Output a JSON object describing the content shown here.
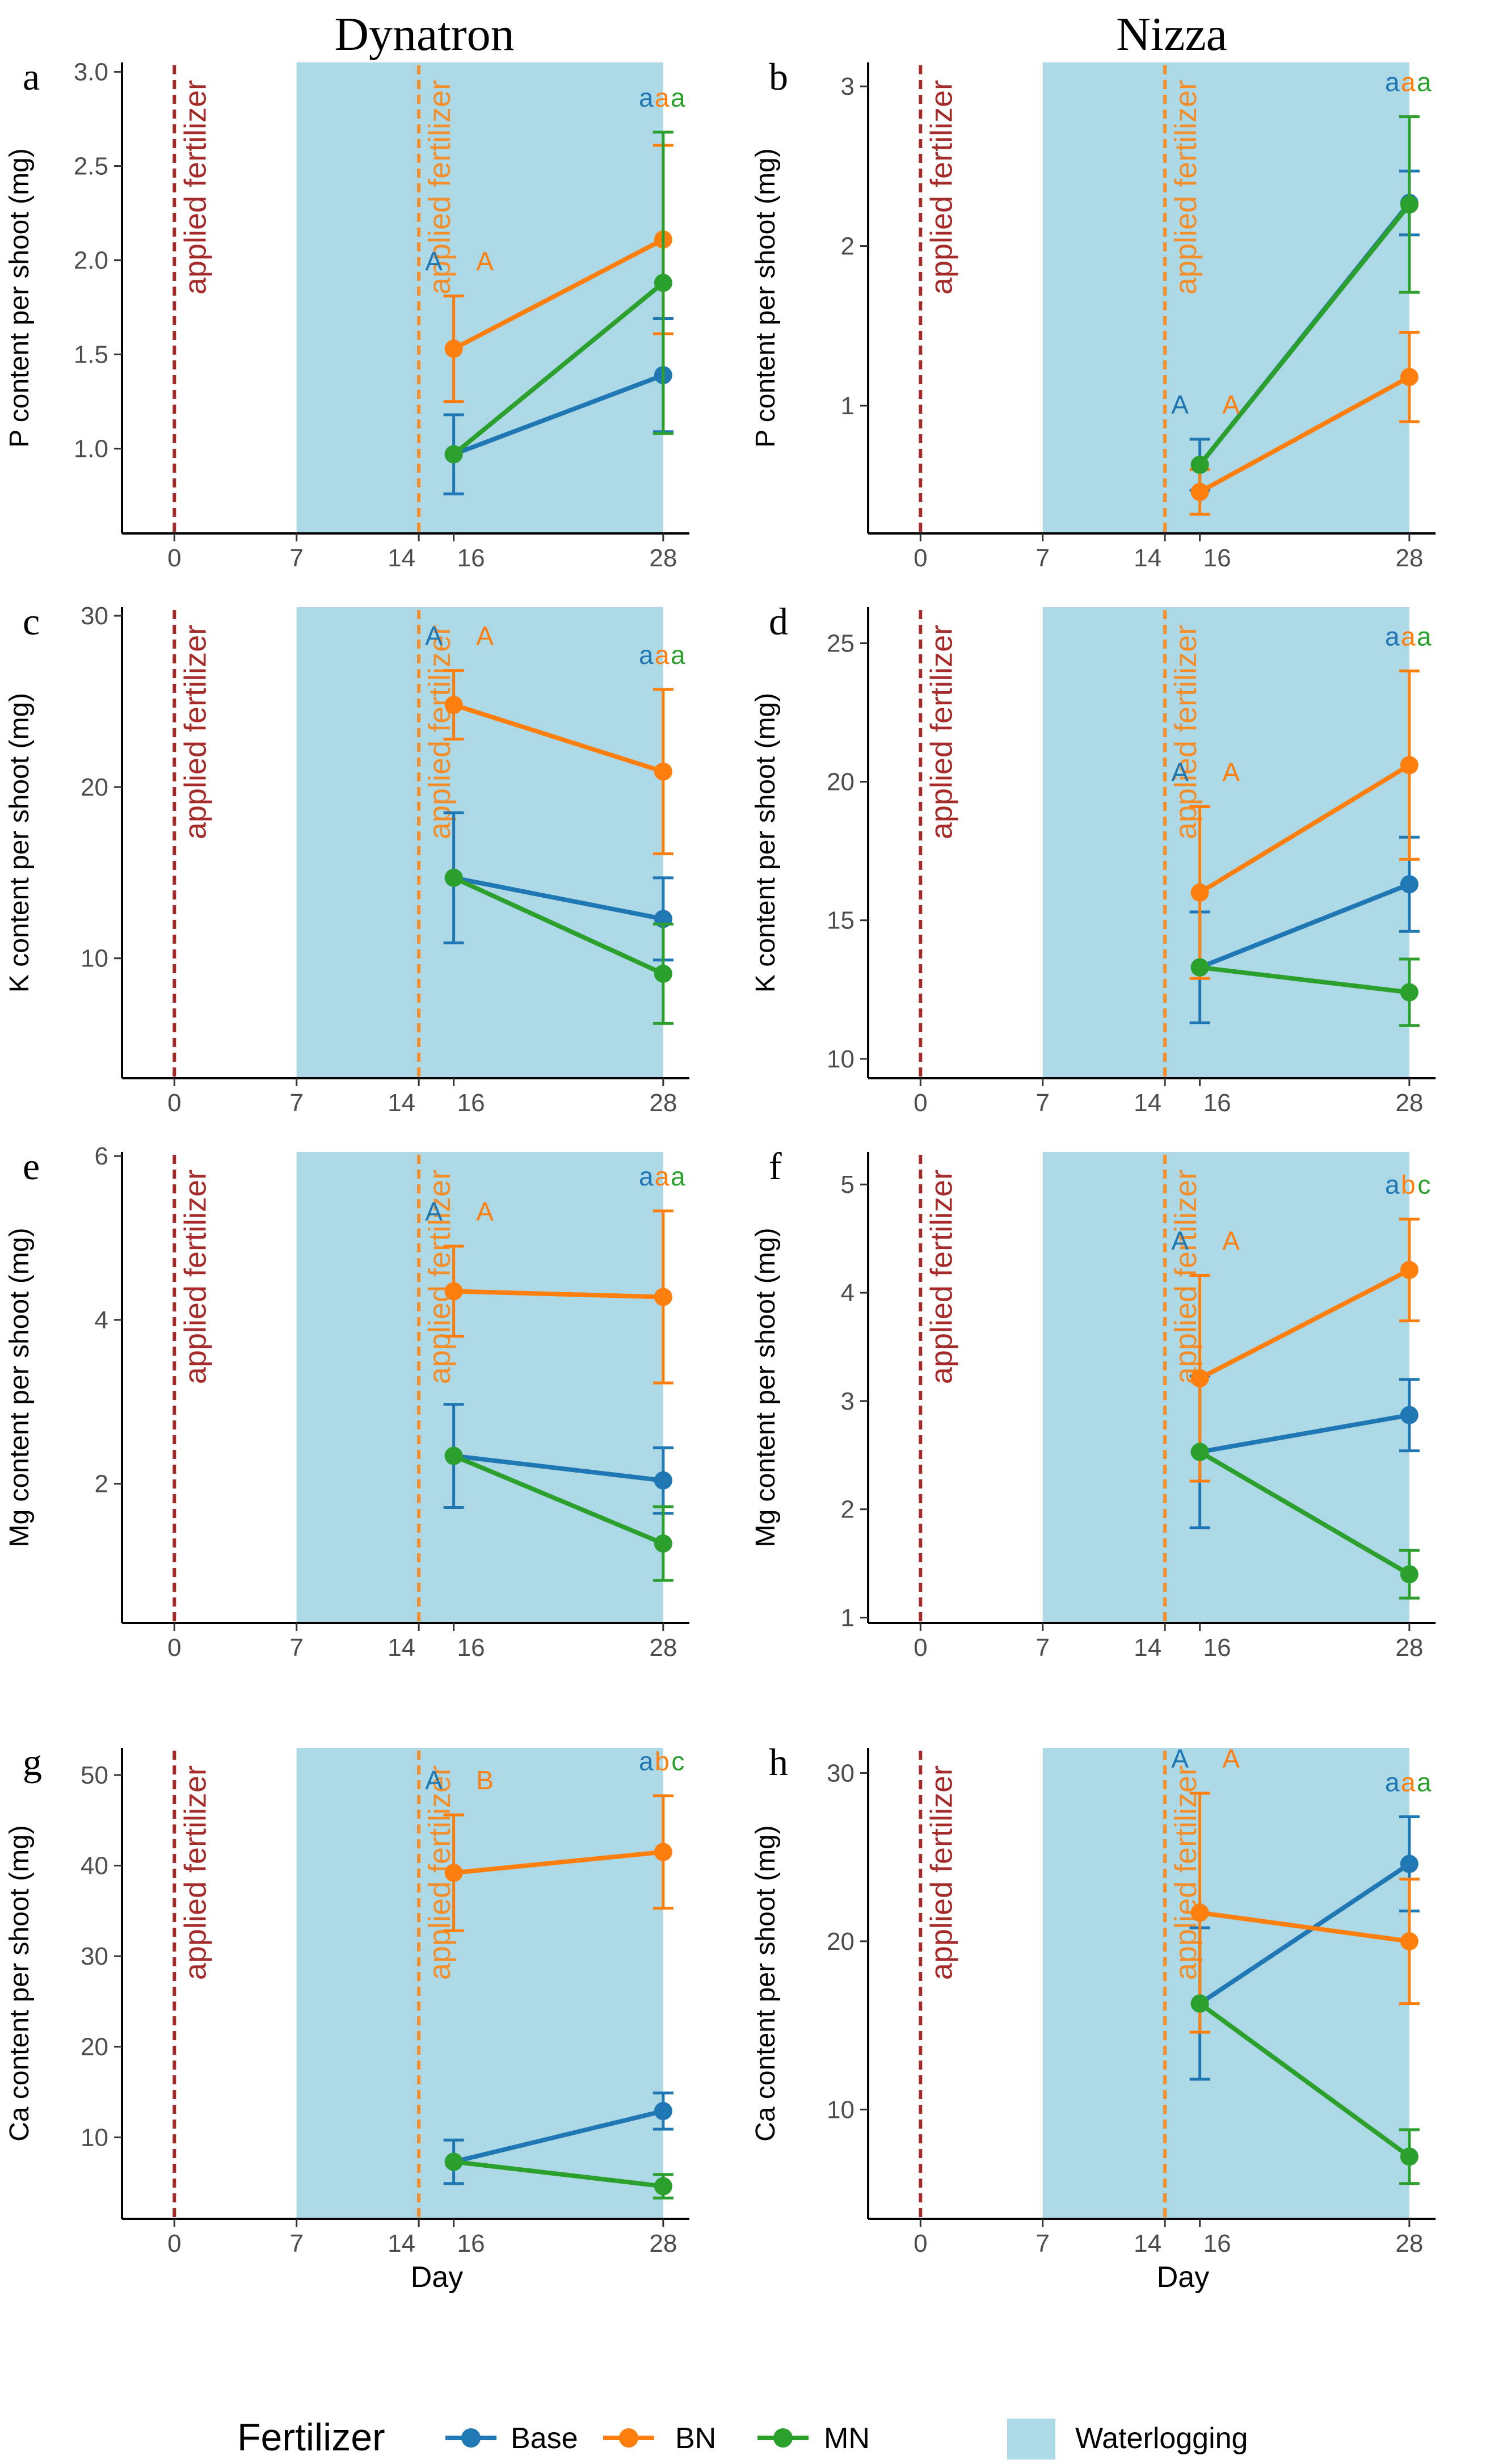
{
  "columns": [
    "Dynatron",
    "Nizza"
  ],
  "x_axis_label": "Day",
  "fertilizer_line_label": "applied fertilizer",
  "colors": {
    "Base": "#1f77b4",
    "BN": "#ff7f0e",
    "MN": "#2ca02c",
    "waterlogging": "#add8e6",
    "first_fertilizer": "#a52a2a",
    "second_fertilizer": "#f28e2b"
  },
  "legend": {
    "title": "Fertilizer",
    "items": [
      {
        "name": "Base",
        "color": "#1f77b4"
      },
      {
        "name": "BN",
        "color": "#ff7f0e"
      },
      {
        "name": "MN",
        "color": "#2ca02c"
      }
    ],
    "waterlogging_label": "Waterlogging"
  },
  "chart_data": [
    {
      "panel": "a",
      "cultivar": "Dynatron",
      "type": "line",
      "ylabel": "P content per shoot (mg)",
      "x_ticks": [
        0,
        7,
        14,
        16,
        28
      ],
      "y_ticks": [
        1.0,
        1.5,
        2.0,
        2.5,
        3.0
      ],
      "y_tick_labels": [
        "1.0",
        "1.5",
        "2.0",
        "2.5",
        "3.0"
      ],
      "ylim": [
        0.55,
        3.05
      ],
      "waterlogging": [
        7,
        28
      ],
      "fertilizer_days": [
        0,
        14
      ],
      "series": [
        {
          "name": "Base",
          "x": [
            16,
            28
          ],
          "y": [
            0.97,
            1.39
          ],
          "err": [
            0.21,
            0.3
          ]
        },
        {
          "name": "BN",
          "x": [
            16,
            28
          ],
          "y": [
            1.53,
            2.11
          ],
          "err": [
            0.28,
            0.5
          ]
        },
        {
          "name": "MN",
          "x": [
            16,
            28
          ],
          "y": [
            0.97,
            1.88
          ],
          "err": [
            0.0,
            0.8
          ]
        }
      ],
      "day16_letters": [
        "A",
        "A"
      ],
      "day28_letters": [
        "a",
        "a",
        "a"
      ]
    },
    {
      "panel": "b",
      "cultivar": "Nizza",
      "type": "line",
      "ylabel": "P content per shoot (mg)",
      "x_ticks": [
        0,
        7,
        14,
        16,
        28
      ],
      "y_ticks": [
        1,
        2,
        3
      ],
      "y_tick_labels": [
        "1",
        "2",
        "3"
      ],
      "ylim": [
        0.2,
        3.15
      ],
      "waterlogging": [
        7,
        28
      ],
      "fertilizer_days": [
        0,
        14
      ],
      "series": [
        {
          "name": "Base",
          "x": [
            16,
            28
          ],
          "y": [
            0.63,
            2.27
          ],
          "err": [
            0.16,
            0.2
          ]
        },
        {
          "name": "BN",
          "x": [
            16,
            28
          ],
          "y": [
            0.46,
            1.18
          ],
          "err": [
            0.14,
            0.28
          ]
        },
        {
          "name": "MN",
          "x": [
            16,
            28
          ],
          "y": [
            0.63,
            2.26
          ],
          "err": [
            0.0,
            0.55
          ]
        }
      ],
      "day16_letters": [
        "A",
        "A"
      ],
      "day28_letters": [
        "a",
        "a",
        "a"
      ]
    },
    {
      "panel": "c",
      "cultivar": "Dynatron",
      "type": "line",
      "ylabel": "K content per shoot (mg)",
      "x_ticks": [
        0,
        7,
        14,
        16,
        28
      ],
      "y_ticks": [
        10,
        20,
        30
      ],
      "y_tick_labels": [
        "10",
        "20",
        "30"
      ],
      "ylim": [
        3.0,
        30.5
      ],
      "waterlogging": [
        7,
        28
      ],
      "fertilizer_days": [
        0,
        14
      ],
      "series": [
        {
          "name": "Base",
          "x": [
            16,
            28
          ],
          "y": [
            14.7,
            12.3
          ],
          "err": [
            3.8,
            2.4
          ]
        },
        {
          "name": "BN",
          "x": [
            16,
            28
          ],
          "y": [
            24.8,
            20.9
          ],
          "err": [
            2.0,
            4.8
          ]
        },
        {
          "name": "MN",
          "x": [
            16,
            28
          ],
          "y": [
            14.7,
            9.1
          ],
          "err": [
            0.0,
            2.9
          ]
        }
      ],
      "day16_letters": [
        "A",
        "A"
      ],
      "day28_letters": [
        "a",
        "a",
        "a"
      ]
    },
    {
      "panel": "d",
      "cultivar": "Nizza",
      "type": "line",
      "ylabel": "K content per shoot (mg)",
      "x_ticks": [
        0,
        7,
        14,
        16,
        28
      ],
      "y_ticks": [
        10,
        15,
        20,
        25
      ],
      "y_tick_labels": [
        "10",
        "15",
        "20",
        "25"
      ],
      "ylim": [
        9.3,
        26.3
      ],
      "waterlogging": [
        7,
        28
      ],
      "fertilizer_days": [
        0,
        14
      ],
      "series": [
        {
          "name": "Base",
          "x": [
            16,
            28
          ],
          "y": [
            13.3,
            16.3
          ],
          "err": [
            2.0,
            1.7
          ]
        },
        {
          "name": "BN",
          "x": [
            16,
            28
          ],
          "y": [
            16.0,
            20.6
          ],
          "err": [
            3.1,
            3.4
          ]
        },
        {
          "name": "MN",
          "x": [
            16,
            28
          ],
          "y": [
            13.3,
            12.4
          ],
          "err": [
            0.0,
            1.2
          ]
        }
      ],
      "day16_letters": [
        "A",
        "A"
      ],
      "day28_letters": [
        "a",
        "a",
        "a"
      ]
    },
    {
      "panel": "e",
      "cultivar": "Dynatron",
      "type": "line",
      "ylabel": "Mg content per shoot (mg)",
      "x_ticks": [
        0,
        7,
        14,
        16,
        28
      ],
      "y_ticks": [
        2,
        4,
        6
      ],
      "y_tick_labels": [
        "2",
        "4",
        "6"
      ],
      "ylim": [
        0.3,
        6.05
      ],
      "waterlogging": [
        7,
        28
      ],
      "fertilizer_days": [
        0,
        14
      ],
      "series": [
        {
          "name": "Base",
          "x": [
            16,
            28
          ],
          "y": [
            2.34,
            2.04
          ],
          "err": [
            0.63,
            0.4
          ]
        },
        {
          "name": "BN",
          "x": [
            16,
            28
          ],
          "y": [
            4.35,
            4.28
          ],
          "err": [
            0.55,
            1.05
          ]
        },
        {
          "name": "MN",
          "x": [
            16,
            28
          ],
          "y": [
            2.34,
            1.27
          ],
          "err": [
            0.0,
            0.45
          ]
        }
      ],
      "day16_letters": [
        "A",
        "A"
      ],
      "day28_letters": [
        "a",
        "a",
        "a"
      ]
    },
    {
      "panel": "f",
      "cultivar": "Nizza",
      "type": "line",
      "ylabel": "Mg content per shoot (mg)",
      "x_ticks": [
        0,
        7,
        14,
        16,
        28
      ],
      "y_ticks": [
        1,
        2,
        3,
        4,
        5
      ],
      "y_tick_labels": [
        "1",
        "2",
        "3",
        "4",
        "5"
      ],
      "ylim": [
        0.95,
        5.3
      ],
      "waterlogging": [
        7,
        28
      ],
      "fertilizer_days": [
        0,
        14
      ],
      "series": [
        {
          "name": "Base",
          "x": [
            16,
            28
          ],
          "y": [
            2.53,
            2.87
          ],
          "err": [
            0.7,
            0.33
          ]
        },
        {
          "name": "BN",
          "x": [
            16,
            28
          ],
          "y": [
            3.21,
            4.21
          ],
          "err": [
            0.95,
            0.47
          ]
        },
        {
          "name": "MN",
          "x": [
            16,
            28
          ],
          "y": [
            2.53,
            1.4
          ],
          "err": [
            0.0,
            0.22
          ]
        }
      ],
      "day16_letters": [
        "A",
        "A"
      ],
      "day28_letters": [
        "a",
        "b",
        "c"
      ]
    },
    {
      "panel": "g",
      "cultivar": "Dynatron",
      "type": "line",
      "ylabel": "Ca content per shoot (mg)",
      "x_ticks": [
        0,
        7,
        14,
        16,
        28
      ],
      "y_ticks": [
        10,
        20,
        30,
        40,
        50
      ],
      "y_tick_labels": [
        "10",
        "20",
        "30",
        "40",
        "50"
      ],
      "ylim": [
        1.0,
        53.0
      ],
      "waterlogging": [
        7,
        28
      ],
      "fertilizer_days": [
        0,
        14
      ],
      "series": [
        {
          "name": "Base",
          "x": [
            16,
            28
          ],
          "y": [
            7.3,
            12.9
          ],
          "err": [
            2.4,
            2.0
          ]
        },
        {
          "name": "BN",
          "x": [
            16,
            28
          ],
          "y": [
            39.2,
            41.5
          ],
          "err": [
            6.4,
            6.2
          ]
        },
        {
          "name": "MN",
          "x": [
            16,
            28
          ],
          "y": [
            7.3,
            4.6
          ],
          "err": [
            0.0,
            1.3
          ]
        }
      ],
      "day16_letters": [
        "A",
        "B"
      ],
      "day28_letters": [
        "a",
        "b",
        "c"
      ]
    },
    {
      "panel": "h",
      "cultivar": "Nizza",
      "type": "line",
      "ylabel": "Ca content per shoot (mg)",
      "x_ticks": [
        0,
        7,
        14,
        16,
        28
      ],
      "y_ticks": [
        10,
        20,
        30
      ],
      "y_tick_labels": [
        "10",
        "20",
        "30"
      ],
      "ylim": [
        3.5,
        31.5
      ],
      "waterlogging": [
        7,
        28
      ],
      "fertilizer_days": [
        0,
        14
      ],
      "series": [
        {
          "name": "Base",
          "x": [
            16,
            28
          ],
          "y": [
            16.3,
            24.6
          ],
          "err": [
            4.5,
            2.8
          ]
        },
        {
          "name": "BN",
          "x": [
            16,
            28
          ],
          "y": [
            21.7,
            20.0
          ],
          "err": [
            7.1,
            3.7
          ]
        },
        {
          "name": "MN",
          "x": [
            16,
            28
          ],
          "y": [
            16.3,
            7.2
          ],
          "err": [
            0.0,
            1.6
          ]
        }
      ],
      "day16_letters": [
        "A",
        "A"
      ],
      "day28_letters": [
        "a",
        "a",
        "a"
      ]
    }
  ]
}
